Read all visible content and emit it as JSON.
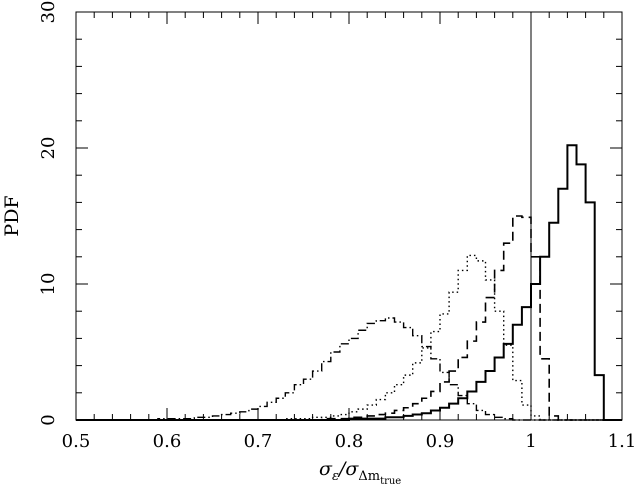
{
  "chart_data": {
    "type": "line",
    "title": "",
    "xlabel": "σ_ε/σ_Δm_true",
    "xlabel_parts": {
      "main": "σ",
      "sub1": "ε",
      "slash": "/σ",
      "sub2": "Δm",
      "sub3": "true"
    },
    "ylabel": "PDF",
    "xlim": [
      0.5,
      1.1
    ],
    "ylim": [
      0,
      30
    ],
    "x_ticks": [
      "0.5",
      "0.6",
      "0.7",
      "0.8",
      "0.9",
      "1",
      "1.1"
    ],
    "x_tick_values": [
      0.5,
      0.6,
      0.7,
      0.8,
      0.9,
      1.0,
      1.1
    ],
    "y_ticks": [
      "0",
      "10",
      "20",
      "30"
    ],
    "y_tick_values": [
      0,
      10,
      20,
      30
    ],
    "grid": false,
    "reference_line": {
      "x": 1.0
    },
    "bin_width": 0.01,
    "series": [
      {
        "style": "dash-dot",
        "color": "#000000",
        "bin_edges_start": 0.5,
        "values": [
          0,
          0,
          0,
          0,
          0,
          0,
          0,
          0,
          0,
          0.1,
          0.1,
          0.1,
          0.1,
          0.2,
          0.2,
          0.3,
          0.4,
          0.5,
          0.6,
          0.8,
          1.0,
          1.3,
          1.6,
          2.0,
          2.6,
          3.0,
          3.6,
          4.3,
          5.0,
          5.6,
          6.0,
          6.6,
          7.1,
          7.3,
          7.5,
          7.2,
          6.8,
          6.2,
          5.4,
          4.5,
          3.5,
          2.6,
          1.8,
          1.2,
          0.7,
          0.4,
          0.2,
          0.1,
          0,
          0,
          0,
          0,
          0,
          0,
          0,
          0,
          0,
          0,
          0,
          0
        ]
      },
      {
        "style": "dotted",
        "color": "#000000",
        "bin_edges_start": 0.5,
        "values": [
          0,
          0,
          0,
          0,
          0,
          0,
          0,
          0,
          0,
          0,
          0,
          0,
          0,
          0,
          0,
          0,
          0,
          0,
          0,
          0,
          0,
          0,
          0,
          0.1,
          0.1,
          0.1,
          0.2,
          0.2,
          0.3,
          0.4,
          0.6,
          0.8,
          1.1,
          1.5,
          2.0,
          2.6,
          3.3,
          4.2,
          5.3,
          6.5,
          7.8,
          9.4,
          11.0,
          12.1,
          11.7,
          10.3,
          8.0,
          5.5,
          2.9,
          1.1,
          0.3,
          0,
          0,
          0,
          0,
          0,
          0,
          0,
          0,
          0
        ]
      },
      {
        "style": "dashed",
        "color": "#000000",
        "bin_edges_start": 0.5,
        "values": [
          0,
          0,
          0,
          0,
          0,
          0,
          0,
          0,
          0,
          0,
          0,
          0,
          0,
          0,
          0,
          0,
          0,
          0,
          0,
          0,
          0,
          0,
          0,
          0,
          0,
          0,
          0,
          0.1,
          0.1,
          0.1,
          0.2,
          0.2,
          0.3,
          0.4,
          0.5,
          0.7,
          0.9,
          1.2,
          1.6,
          2.1,
          2.8,
          3.6,
          4.6,
          5.8,
          7.2,
          9.0,
          11.0,
          13.0,
          15.0,
          14.9,
          12.0,
          4.5,
          0.3,
          0,
          0,
          0,
          0,
          0,
          0,
          0
        ]
      },
      {
        "style": "solid",
        "color": "#000000",
        "bin_edges_start": 0.5,
        "values": [
          0,
          0,
          0,
          0,
          0,
          0,
          0,
          0,
          0,
          0,
          0,
          0,
          0,
          0,
          0,
          0,
          0,
          0,
          0,
          0,
          0,
          0,
          0,
          0,
          0,
          0,
          0,
          0,
          0,
          0,
          0.1,
          0.1,
          0.1,
          0.1,
          0.2,
          0.2,
          0.3,
          0.4,
          0.5,
          0.7,
          0.9,
          1.2,
          1.6,
          2.1,
          2.8,
          3.6,
          4.6,
          5.6,
          7.0,
          8.3,
          10.0,
          12.0,
          14.5,
          17.0,
          20.2,
          18.8,
          16.0,
          3.3,
          0,
          0
        ]
      }
    ]
  }
}
